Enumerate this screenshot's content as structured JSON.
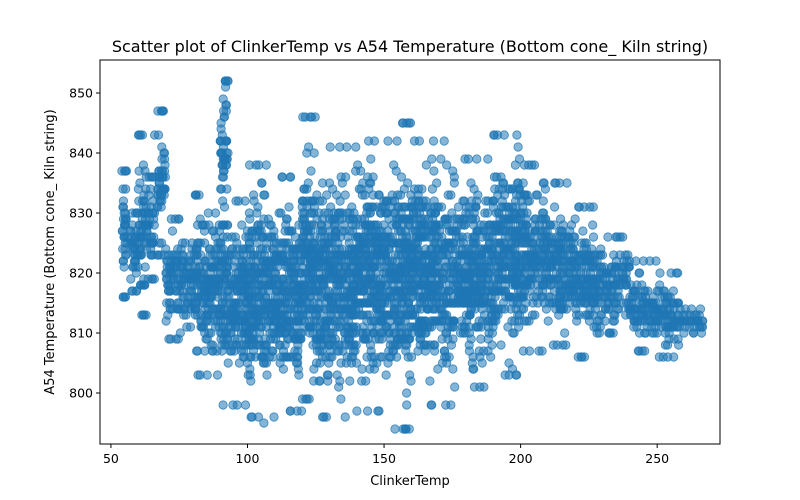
{
  "chart_data": {
    "type": "scatter",
    "title": "Scatter plot of ClinkerTemp vs A54 Temperature (Bottom cone_ Kiln string)",
    "xlabel": "ClinkerTemp",
    "ylabel": "A54 Temperature (Bottom cone_ Kiln string)",
    "xlim": [
      46,
      273
    ],
    "ylim": [
      791.5,
      855.5
    ],
    "xticks": [
      50,
      100,
      150,
      200,
      250
    ],
    "yticks": [
      800,
      810,
      820,
      830,
      840,
      850
    ],
    "grid": false,
    "legend": "none",
    "marker_color": "#1f77b4",
    "marker_alpha": 0.55,
    "series": [
      {
        "clusters": [
          {
            "x": [
              54,
              56
            ],
            "y": [
              816,
              837
            ]
          },
          {
            "x": [
              57,
              60
            ],
            "y": [
              817,
              830
            ]
          },
          {
            "x": [
              60,
              63
            ],
            "y": [
              813,
              843
            ]
          },
          {
            "x": [
              63,
              66
            ],
            "y": [
              819,
              836
            ]
          },
          {
            "x": [
              67,
              70
            ],
            "y": [
              823,
              847
            ]
          },
          {
            "x": [
              70,
              80
            ],
            "y": [
              809,
              829
            ]
          },
          {
            "x": [
              80,
              90
            ],
            "y": [
              803,
              833
            ]
          },
          {
            "x": [
              90,
              93
            ],
            "y": [
              828,
              852
            ]
          },
          {
            "x": [
              90,
              100
            ],
            "y": [
              798,
              832
            ]
          },
          {
            "x": [
              100,
              110
            ],
            "y": [
              796,
              838
            ]
          },
          {
            "x": [
              110,
              120
            ],
            "y": [
              797,
              836
            ]
          },
          {
            "x": [
              120,
              125
            ],
            "y": [
              799,
              846
            ]
          },
          {
            "x": [
              125,
              140
            ],
            "y": [
              796,
              841
            ]
          },
          {
            "x": [
              140,
              155
            ],
            "y": [
              797,
              842
            ]
          },
          {
            "x": [
              155,
              160
            ],
            "y": [
              794,
              845
            ]
          },
          {
            "x": [
              160,
              175
            ],
            "y": [
              798,
              842
            ]
          },
          {
            "x": [
              175,
              190
            ],
            "y": [
              801,
              839
            ]
          },
          {
            "x": [
              190,
              200
            ],
            "y": [
              803,
              843
            ]
          },
          {
            "x": [
              200,
              210
            ],
            "y": [
              807,
              838
            ]
          },
          {
            "x": [
              210,
              220
            ],
            "y": [
              808,
              835
            ]
          },
          {
            "x": [
              220,
              230
            ],
            "y": [
              806,
              831
            ]
          },
          {
            "x": [
              230,
              240
            ],
            "y": [
              810,
              826
            ]
          },
          {
            "x": [
              240,
              250
            ],
            "y": [
              807,
              822
            ]
          },
          {
            "x": [
              250,
              258
            ],
            "y": [
              806,
              820
            ]
          },
          {
            "x": [
              258,
              267
            ],
            "y": [
              810,
              814
            ]
          }
        ],
        "outliers": [
          {
            "x": 92,
            "y": 852
          },
          {
            "x": 92,
            "y": 851
          },
          {
            "x": 69,
            "y": 847
          },
          {
            "x": 123,
            "y": 846
          },
          {
            "x": 157,
            "y": 845
          },
          {
            "x": 66,
            "y": 843
          },
          {
            "x": 194,
            "y": 843
          },
          {
            "x": 154,
            "y": 794
          },
          {
            "x": 157,
            "y": 794
          },
          {
            "x": 106,
            "y": 795
          },
          {
            "x": 265,
            "y": 812
          },
          {
            "x": 262,
            "y": 813
          }
        ]
      }
    ]
  }
}
